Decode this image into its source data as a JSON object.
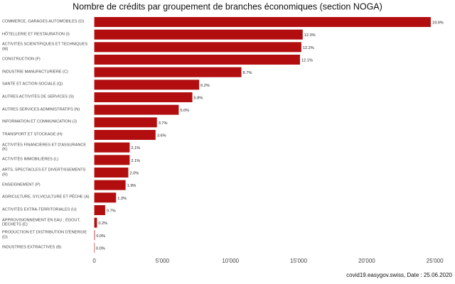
{
  "chart_data": {
    "type": "bar",
    "orientation": "horizontal",
    "title": "Nombre de crédits par groupement de branches économiques (section NOGA)",
    "caption": "covid19.easygov.swiss, Date : 25.06.2020",
    "color": "#b20e10",
    "categories": [
      "COMMERCE, GARAGES AUTOMOBILES (G)",
      "HÔTELLERIE ET RESTAURATION (I)",
      "ACTIVITÉS SCIENTIFIQUES ET TECHNIQUES (M)",
      "CONSTRUCTION (F)",
      "INDUSTRIE MANUFACTURIÈRE (C)",
      "SANTÉ ET ACTION SOCIALE (Q)",
      "AUTRES ACTIVITÉS DE SERVICES (S)",
      "AUTRES SERVICES ADMINISTRATIFS (N)",
      "INFORMATION ET COMMUNICATION (J)",
      "TRANSPORT ET STOCKAGE (H)",
      "ACTIVITÉS FINANCIÈRES ET D'ASSURANCE (K)",
      "ACTIVITÉS IMMOBILIÈRES (L)",
      "ARTS, SPECTACLES ET DIVERTISSEMENTS (R)",
      "ENSEIGNEMENT (P)",
      "AGRICULTURE, SYLVICULTURE ET PÊCHE (A)",
      "ACTIVITÉS EXTRA-TERRITORIALES (U)",
      "APPROVISIONNEMENT EN EAU ; ÉGOUT, DÉCHETS (E)",
      "PRODUCTION ET DISTRIBUTION D'ÉNERGIE (D)",
      "INDUSTRIES EXTRACTIVES (B)"
    ],
    "values": [
      24700,
      15300,
      15200,
      15100,
      10800,
      7700,
      7200,
      6200,
      4600,
      4500,
      2600,
      2600,
      2500,
      2300,
      1600,
      800,
      200,
      40,
      20
    ],
    "share_labels": [
      "19.9%",
      "12.3%",
      "12.2%",
      "12.1%",
      "8.7%",
      "6.2%",
      "5.8%",
      "5.0%",
      "3.7%",
      "3.6%",
      "2.1%",
      "2.1%",
      "2.0%",
      "1.9%",
      "1.3%",
      "0.7%",
      "0.2%",
      "0.0%",
      "0.0%"
    ],
    "xlim": [
      -500,
      25800
    ],
    "xticks": [
      0,
      {
        "value": 5000,
        "label": "5'000"
      },
      {
        "value": 10000,
        "label": "10'000"
      },
      {
        "value": 15000,
        "label": "15'000"
      },
      {
        "value": 20000,
        "label": "20'000"
      },
      {
        "value": 25000,
        "label": "25'000"
      }
    ],
    "grid": false
  }
}
